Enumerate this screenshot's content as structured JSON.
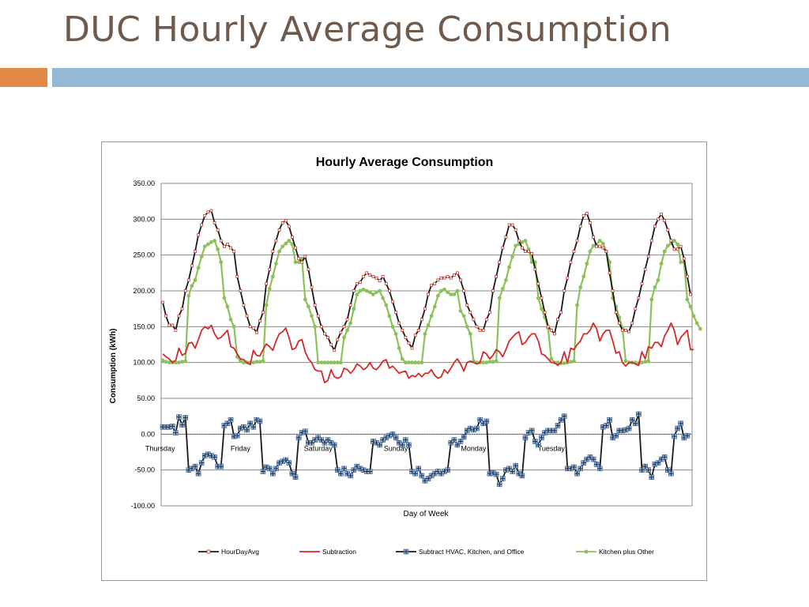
{
  "slide": {
    "title": "DUC Hourly Average Consumption"
  },
  "colors": {
    "orange_bar": "#e28845",
    "blue_bar": "#95b8d6"
  },
  "chart_data": {
    "type": "line",
    "title": "Hourly Average Consumption",
    "xlabel": "Day of Week",
    "ylabel": "Consumption (kWh)",
    "ylim": [
      -100,
      350
    ],
    "y_ticks": [
      "-100.00",
      "-50.00",
      "0.00",
      "50.00",
      "100.00",
      "150.00",
      "200.00",
      "250.00",
      "300.00",
      "350.00"
    ],
    "day_labels": [
      "Thursday",
      "Friday",
      "Saturday",
      "Sunday",
      "Monday",
      "Tuesday"
    ],
    "grid": true,
    "legend_position": "bottom",
    "series": [
      {
        "name": "HourDayAvg",
        "color": "#1a1a1a",
        "marker": "square-red",
        "values": [
          184,
          165,
          152,
          152,
          145,
          165,
          175,
          200,
          215,
          235,
          255,
          278,
          292,
          305,
          310,
          312,
          295,
          285,
          270,
          262,
          265,
          260,
          255,
          220,
          200,
          180,
          165,
          150,
          148,
          142,
          158,
          170,
          210,
          230,
          255,
          270,
          285,
          295,
          298,
          290,
          275,
          260,
          245,
          240,
          248,
          230,
          205,
          180,
          165,
          150,
          140,
          135,
          125,
          117,
          132,
          142,
          150,
          160,
          180,
          200,
          210,
          212,
          220,
          225,
          222,
          220,
          218,
          214,
          220,
          210,
          200,
          185,
          170,
          155,
          145,
          135,
          127,
          120,
          138,
          145,
          160,
          175,
          195,
          208,
          210,
          215,
          218,
          218,
          220,
          218,
          222,
          225,
          215,
          200,
          180,
          170,
          160,
          150,
          145,
          145,
          160,
          170,
          200,
          220,
          240,
          260,
          275,
          292,
          292,
          285,
          270,
          260,
          255,
          255,
          252,
          230,
          210,
          190,
          170,
          150,
          145,
          140,
          160,
          170,
          200,
          218,
          240,
          255,
          270,
          290,
          305,
          308,
          295,
          275,
          262,
          262,
          260,
          255,
          225,
          200,
          170,
          155,
          145,
          145,
          143,
          155,
          175,
          190,
          210,
          230,
          248,
          270,
          290,
          300,
          307,
          298,
          285,
          270,
          258,
          258,
          262,
          245,
          220,
          195
        ]
      },
      {
        "name": "Subtraction",
        "color": "#d42a2a",
        "marker": "none",
        "values": [
          112,
          108,
          105,
          100,
          103,
          120,
          110,
          113,
          127,
          128,
          120,
          132,
          145,
          150,
          147,
          152,
          140,
          133,
          135,
          140,
          145,
          122,
          120,
          112,
          105,
          104,
          100,
          97,
          117,
          110,
          109,
          118,
          126,
          122,
          117,
          130,
          140,
          143,
          148,
          135,
          118,
          120,
          130,
          132,
          115,
          105,
          100,
          90,
          88,
          88,
          72,
          75,
          90,
          80,
          78,
          80,
          92,
          90,
          85,
          90,
          98,
          95,
          90,
          93,
          100,
          92,
          90,
          95,
          102,
          104,
          92,
          95,
          90,
          85,
          87,
          88,
          78,
          82,
          80,
          85,
          80,
          85,
          85,
          90,
          82,
          78,
          80,
          90,
          85,
          92,
          100,
          105,
          98,
          88,
          100,
          102,
          100,
          98,
          100,
          115,
          112,
          105,
          110,
          118,
          115,
          108,
          118,
          130,
          135,
          140,
          143,
          125,
          128,
          135,
          140,
          140,
          130,
          112,
          110,
          105,
          100,
          100,
          96,
          100,
          115,
          100,
          120,
          118,
          125,
          130,
          140,
          140,
          145,
          155,
          147,
          130,
          140,
          145,
          145,
          130,
          113,
          115,
          100,
          95,
          100,
          100,
          98,
          96,
          115,
          105,
          122,
          120,
          128,
          128,
          122,
          137,
          145,
          155,
          145,
          125,
          135,
          140,
          145,
          118,
          118
        ]
      },
      {
        "name": "Subtract HVAC, Kitchen, and Office",
        "color": "#1a1a1a",
        "marker": "cross-blue",
        "values": [
          10,
          10,
          10,
          11,
          2,
          24,
          13,
          23,
          -50,
          -48,
          -45,
          -55,
          -40,
          -30,
          -28,
          -30,
          -32,
          -45,
          -45,
          12,
          15,
          20,
          -3,
          -2,
          8,
          10,
          6,
          15,
          10,
          20,
          18,
          -52,
          -46,
          -48,
          -55,
          -48,
          -40,
          -38,
          -36,
          -40,
          -55,
          -60,
          -5,
          2,
          4,
          -12,
          -12,
          -8,
          -5,
          -8,
          -12,
          -8,
          -12,
          -15,
          -50,
          -55,
          -48,
          -55,
          -58,
          -50,
          -45,
          -48,
          -50,
          -52,
          -52,
          -10,
          -12,
          -15,
          -8,
          -5,
          -2,
          0,
          -5,
          -12,
          -15,
          -8,
          -15,
          -52,
          -55,
          -48,
          -58,
          -65,
          -62,
          -58,
          -55,
          -52,
          -55,
          -52,
          -50,
          -12,
          -8,
          -15,
          -10,
          -4,
          5,
          8,
          6,
          8,
          20,
          15,
          18,
          -55,
          -54,
          -56,
          -70,
          -62,
          -50,
          -48,
          -52,
          -44,
          -55,
          -58,
          -5,
          2,
          5,
          -10,
          -15,
          -5,
          2,
          5,
          5,
          5,
          12,
          20,
          25,
          -48,
          -48,
          -46,
          -55,
          -48,
          -40,
          -35,
          -32,
          -35,
          -42,
          -48,
          10,
          12,
          20,
          -5,
          -2,
          5,
          5,
          6,
          8,
          20,
          15,
          28,
          -50,
          -45,
          -50,
          -60,
          -42,
          -40,
          -35,
          -32,
          -50,
          -55,
          -3,
          8,
          15,
          -5,
          -2
        ]
      },
      {
        "name": "Kitchen plus Other",
        "color": "#8cc15a",
        "marker": "circle-green",
        "values": [
          103,
          101,
          100,
          100,
          100,
          100,
          101,
          102,
          193,
          207,
          215,
          232,
          248,
          262,
          265,
          268,
          270,
          258,
          240,
          190,
          178,
          160,
          150,
          108,
          102,
          100,
          100,
          100,
          100,
          101,
          101,
          102,
          180,
          203,
          220,
          238,
          255,
          262,
          266,
          270,
          265,
          240,
          240,
          245,
          188,
          178,
          165,
          150,
          100,
          100,
          100,
          100,
          100,
          100,
          100,
          100,
          135,
          145,
          155,
          175,
          195,
          200,
          202,
          200,
          198,
          195,
          198,
          200,
          190,
          180,
          165,
          150,
          140,
          120,
          105,
          100,
          100,
          100,
          100,
          100,
          100,
          140,
          152,
          165,
          178,
          193,
          200,
          202,
          198,
          195,
          195,
          200,
          172,
          165,
          150,
          140,
          102,
          100,
          100,
          100,
          100,
          101,
          101,
          102,
          190,
          203,
          215,
          233,
          248,
          263,
          265,
          268,
          270,
          258,
          240,
          240,
          190,
          175,
          163,
          148,
          105,
          100,
          100,
          99,
          99,
          100,
          101,
          102,
          180,
          205,
          220,
          238,
          255,
          263,
          265,
          270,
          266,
          255,
          240,
          190,
          178,
          163,
          148,
          102,
          100,
          100,
          100,
          99,
          100,
          101,
          102,
          188,
          205,
          215,
          238,
          255,
          263,
          266,
          270,
          265,
          240,
          240,
          188,
          178,
          165,
          155,
          147
        ]
      }
    ]
  }
}
